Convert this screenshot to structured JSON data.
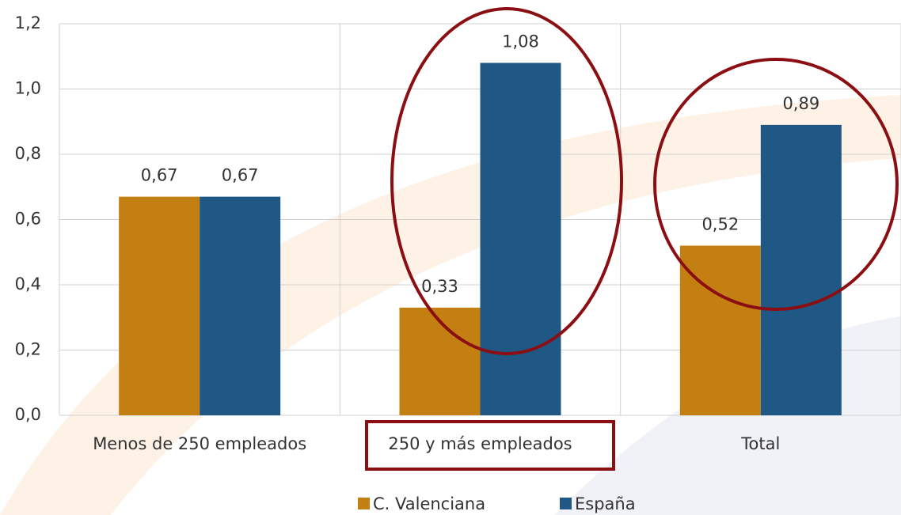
{
  "chart_data": {
    "type": "bar",
    "categories": [
      "Menos de 250 empleados",
      "250 y más empleados",
      "Total"
    ],
    "series": [
      {
        "name": "C. Valenciana",
        "color": "#c47f12",
        "values": [
          0.67,
          0.33,
          0.52
        ],
        "value_labels": [
          "0,67",
          "0,33",
          "0,52"
        ]
      },
      {
        "name": "España",
        "color": "#1f5785",
        "values": [
          0.67,
          1.08,
          0.89
        ],
        "value_labels": [
          "0,67",
          "1,08",
          "0,89"
        ]
      }
    ],
    "ylim": [
      0,
      1.2
    ],
    "yticks": [
      {
        "value": 0,
        "label": "0,0"
      },
      {
        "value": 0.2,
        "label": "0,2"
      },
      {
        "value": 0.4,
        "label": "0,4"
      },
      {
        "value": 0.6,
        "label": "0,6"
      },
      {
        "value": 0.8,
        "label": "0,8"
      },
      {
        "value": 1.0,
        "label": "1,0"
      },
      {
        "value": 1.2,
        "label": "1,2"
      }
    ],
    "grid": true
  }
}
